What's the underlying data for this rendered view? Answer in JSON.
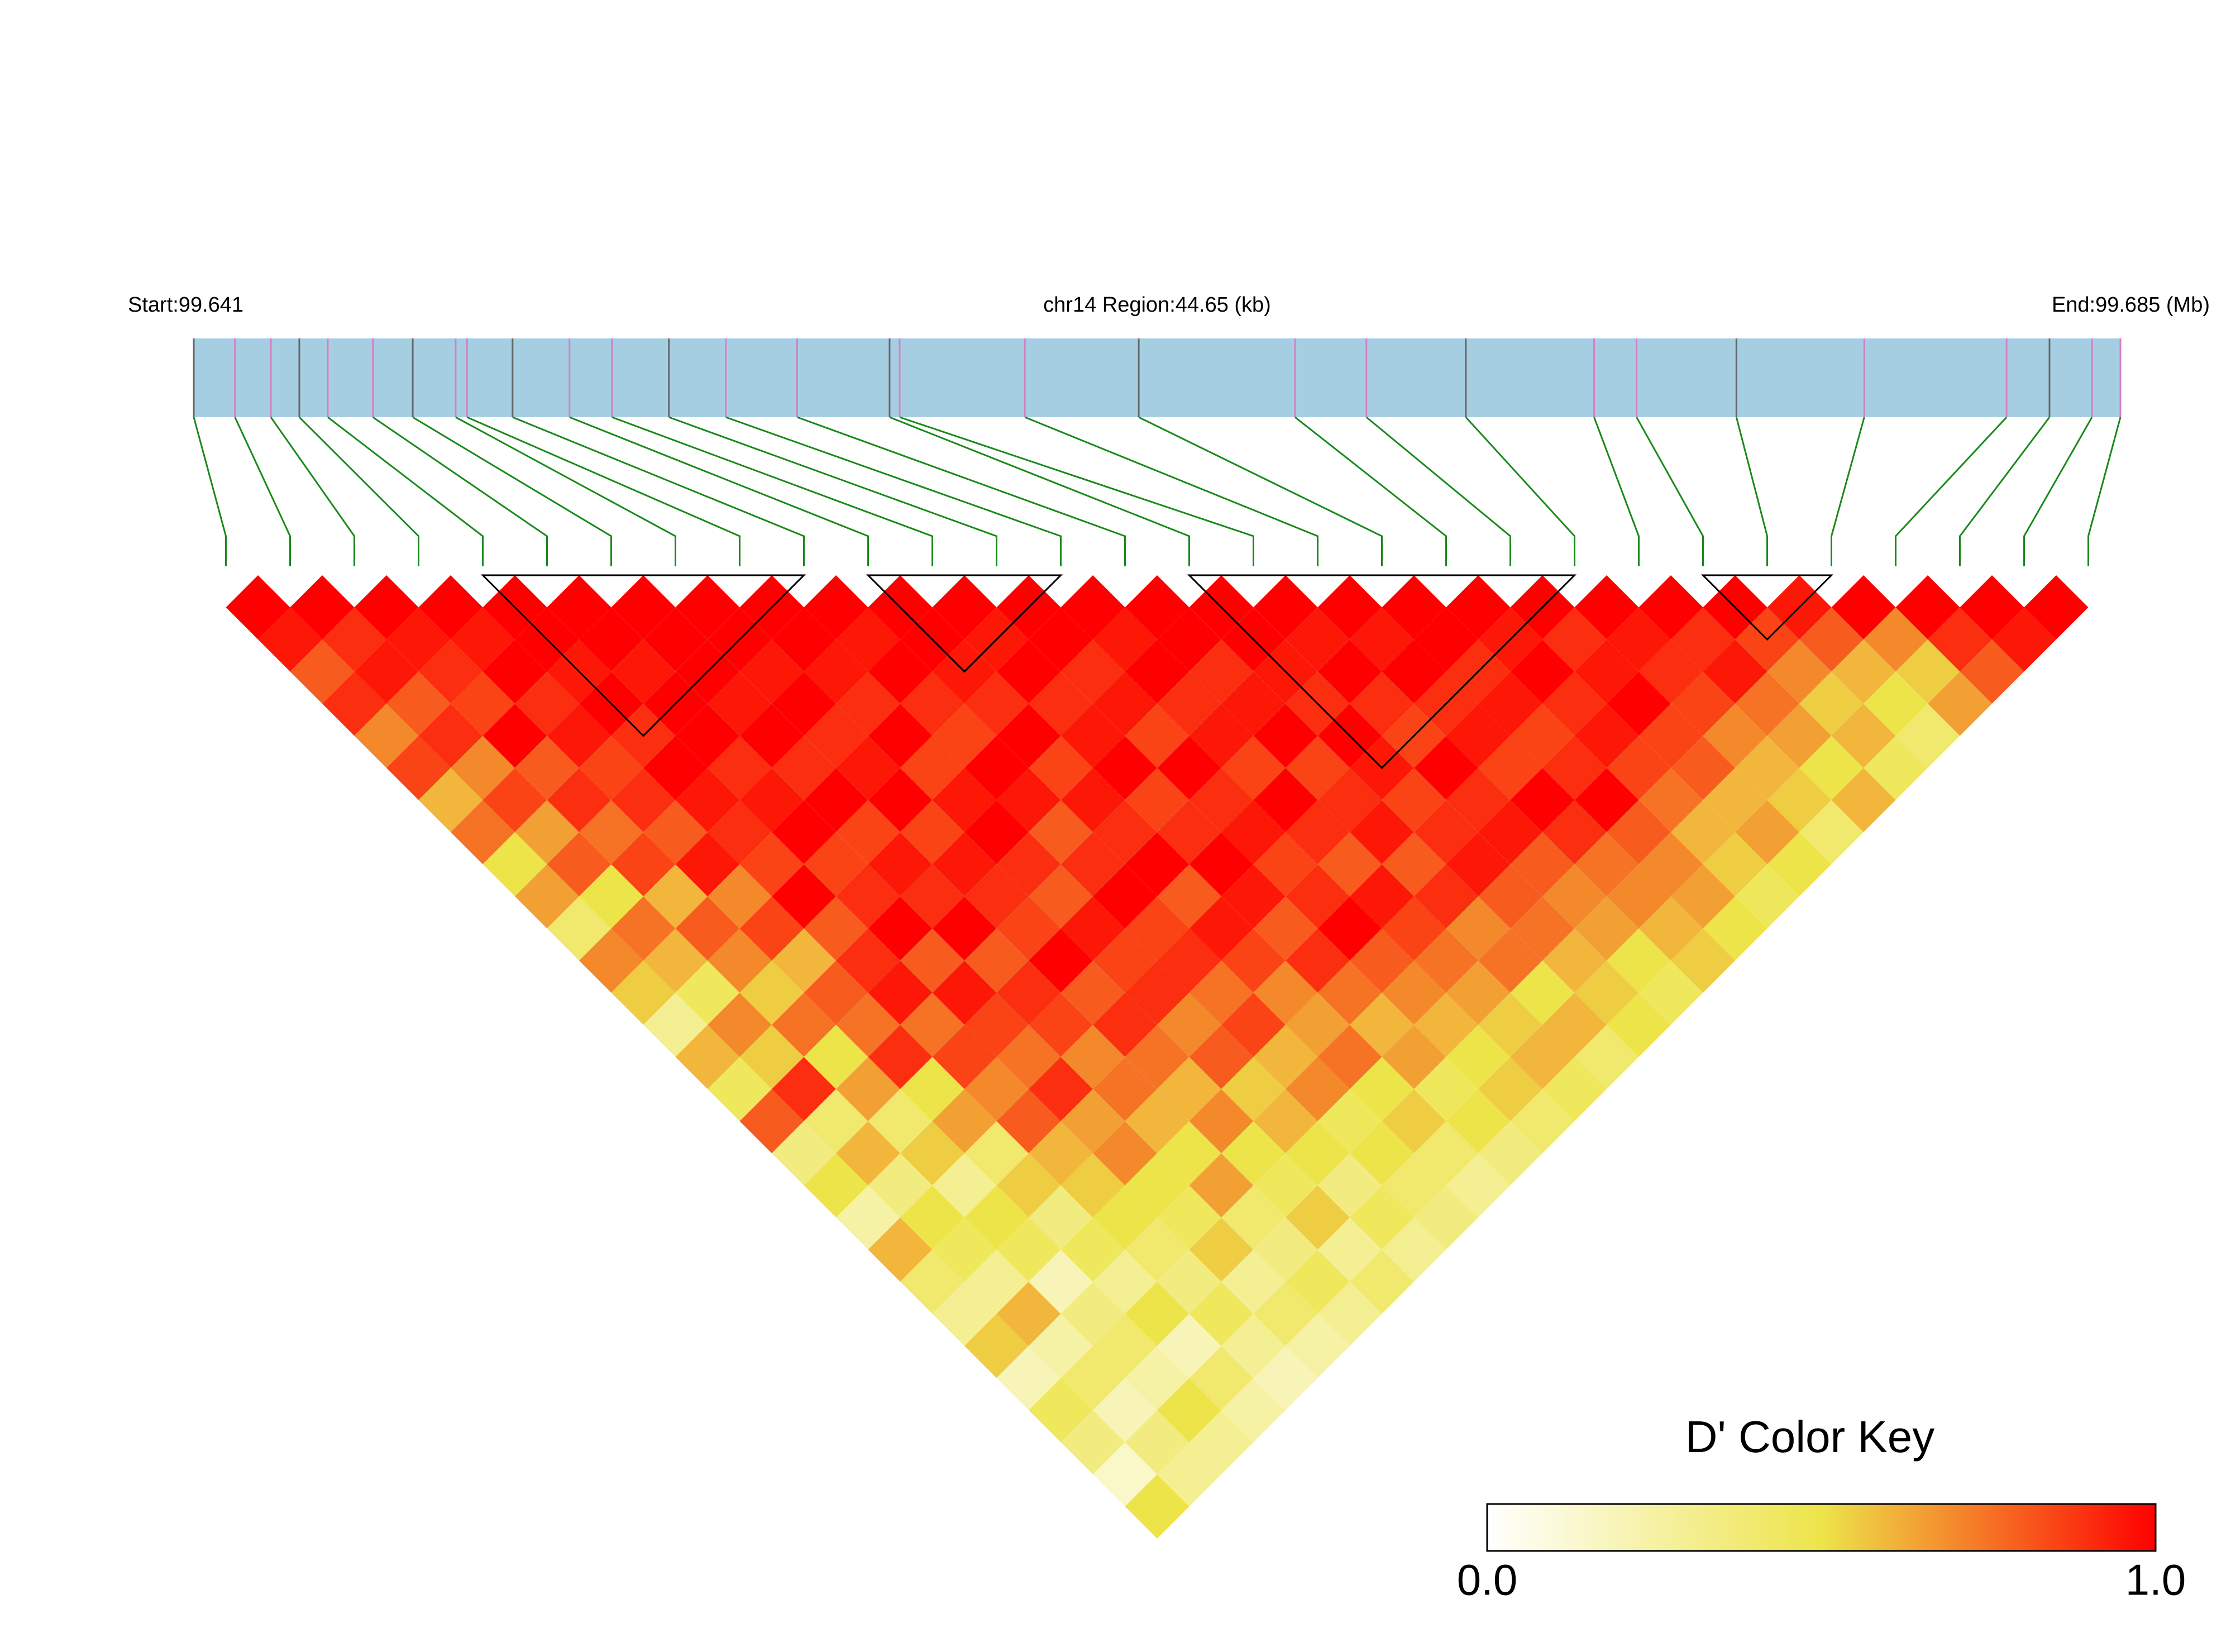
{
  "chart_data": {
    "type": "ldheatmap",
    "title": "chr14 Region:44.65 (kb)",
    "xlim": [
      99.641,
      99.685
    ],
    "xticks": [
      {
        "value": 99.641,
        "label": "Start:99.641"
      },
      {
        "value": 99.685,
        "label": "End:99.685 (Mb)"
      }
    ],
    "snp_positions": [
      99.641,
      99.64194,
      99.64276,
      99.64341,
      99.64406,
      99.64509,
      99.646,
      99.64698,
      99.64724,
      99.64828,
      99.64958,
      99.65055,
      99.65185,
      99.65315,
      99.65478,
      99.65689,
      99.65712,
      99.65998,
      99.66258,
      99.66615,
      99.66778,
      99.67005,
      99.67298,
      99.67395,
      99.67623,
      99.67915,
      99.6824,
      99.68338,
      99.68435,
      99.685
    ],
    "matrix": [
      [
        1,
        0.95,
        0.8,
        0.9,
        0.7,
        0.85,
        0.6,
        0.75,
        0.5,
        0.65,
        0.4,
        0.7,
        0.55,
        0.3,
        0.6,
        0.45,
        0.8,
        0.35,
        0.5,
        0.25,
        0.6,
        0.4,
        0.3,
        0.55,
        0.2,
        0.45,
        0.35,
        0.15,
        0.5
      ],
      [
        1,
        0.9,
        0.95,
        0.8,
        0.9,
        0.7,
        0.85,
        0.65,
        0.8,
        0.5,
        0.75,
        0.6,
        0.45,
        0.7,
        0.55,
        0.9,
        0.4,
        0.6,
        0.35,
        0.5,
        0.45,
        0.3,
        0.6,
        0.25,
        0.4,
        0.2,
        0.35,
        0.3
      ],
      [
        1,
        0.95,
        0.9,
        0.85,
        1,
        0.8,
        0.9,
        0.75,
        0.85,
        0.6,
        0.8,
        0.7,
        0.55,
        0.75,
        0.5,
        0.65,
        0.4,
        0.55,
        0.3,
        0.5,
        0.45,
        0.2,
        0.35,
        0.4,
        0.25,
        0.5,
        0.3
      ],
      [
        1,
        0.95,
        1,
        0.9,
        0.95,
        0.85,
        0.9,
        0.8,
        0.95,
        0.7,
        0.85,
        0.6,
        0.8,
        0.75,
        0.9,
        0.5,
        0.65,
        0.4,
        0.55,
        0.35,
        0.45,
        0.3,
        0.5,
        0.2,
        0.4,
        0.25
      ],
      [
        1,
        1,
        0.95,
        1,
        0.9,
        1,
        0.95,
        0.9,
        0.85,
        1,
        0.8,
        0.9,
        0.95,
        0.75,
        0.85,
        0.7,
        0.8,
        0.6,
        0.55,
        0.5,
        0.4,
        0.35,
        0.45,
        0.3,
        0.2
      ],
      [
        1,
        1,
        0.95,
        1,
        1,
        0.9,
        0.95,
        1,
        0.85,
        0.9,
        1,
        0.8,
        0.95,
        0.85,
        0.75,
        0.9,
        0.65,
        0.7,
        0.5,
        0.45,
        0.55,
        0.3,
        0.4,
        0.25
      ],
      [
        1,
        1,
        1,
        0.95,
        1,
        0.9,
        1,
        0.85,
        0.95,
        0.9,
        1,
        0.8,
        0.9,
        0.85,
        0.7,
        0.75,
        0.6,
        0.5,
        0.65,
        0.4,
        0.35,
        0.45,
        0.3
      ],
      [
        1,
        1,
        0.95,
        1,
        0.9,
        0.95,
        1,
        0.85,
        0.95,
        0.9,
        0.85,
        1,
        0.8,
        0.9,
        0.75,
        0.6,
        0.7,
        0.5,
        0.45,
        0.55,
        0.3,
        0.4
      ],
      [
        1,
        1,
        0.95,
        0.9,
        1,
        0.85,
        0.95,
        1,
        0.9,
        0.8,
        0.95,
        0.85,
        0.9,
        0.7,
        0.8,
        0.55,
        0.6,
        0.5,
        0.35,
        0.45,
        0.3
      ],
      [
        1,
        0.95,
        1,
        0.9,
        0.85,
        1,
        0.95,
        0.8,
        0.9,
        1,
        0.85,
        0.9,
        0.75,
        0.85,
        0.6,
        0.7,
        0.45,
        0.5,
        0.4,
        0.35
      ],
      [
        1,
        1,
        0.95,
        0.9,
        1,
        0.85,
        0.95,
        0.9,
        1,
        0.8,
        0.95,
        0.85,
        0.7,
        0.65,
        0.75,
        0.5,
        0.55,
        0.4,
        0.3
      ],
      [
        1,
        0.95,
        1,
        0.9,
        0.95,
        1,
        0.85,
        0.9,
        1,
        0.95,
        0.8,
        0.9,
        0.75,
        0.6,
        0.65,
        0.45,
        0.5,
        0.35
      ],
      [
        1,
        1,
        0.9,
        0.95,
        0.85,
        1,
        0.9,
        0.95,
        0.85,
        0.9,
        1,
        0.8,
        0.7,
        0.6,
        0.5,
        0.55,
        0.4
      ],
      [
        1,
        0.95,
        1,
        0.9,
        0.95,
        0.85,
        1,
        0.9,
        0.8,
        0.95,
        0.85,
        0.75,
        0.65,
        0.55,
        0.6,
        0.45
      ],
      [
        1,
        1,
        0.9,
        0.95,
        1,
        0.85,
        0.9,
        0.95,
        0.8,
        0.9,
        0.7,
        0.75,
        0.5,
        0.6,
        0.4
      ],
      [
        1,
        1,
        0.95,
        0.9,
        1,
        0.95,
        0.85,
        0.9,
        0.95,
        0.8,
        0.75,
        0.6,
        0.55,
        0.5
      ],
      [
        1,
        0.95,
        1,
        0.9,
        0.85,
        1,
        0.9,
        0.95,
        0.8,
        0.7,
        0.65,
        0.5,
        0.45
      ],
      [
        1,
        0.95,
        1,
        0.9,
        0.95,
        0.85,
        1,
        0.9,
        0.75,
        0.7,
        0.6,
        0.55
      ],
      [
        1,
        1,
        0.9,
        0.95,
        0.85,
        0.9,
        1,
        0.8,
        0.7,
        0.65,
        0.5
      ],
      [
        1,
        0.95,
        1,
        0.9,
        0.95,
        0.85,
        0.75,
        0.6,
        0.55,
        0.45
      ],
      [
        1,
        0.9,
        0.95,
        1,
        0.85,
        0.8,
        0.6,
        0.65,
        0.5
      ],
      [
        1,
        0.95,
        0.9,
        0.85,
        0.7,
        0.6,
        0.55,
        0.4
      ],
      [
        1,
        0.9,
        0.95,
        0.75,
        0.65,
        0.5,
        0.6
      ],
      [
        1,
        0.85,
        0.7,
        0.55,
        0.6,
        0.45
      ],
      [
        0.95,
        0.8,
        0.6,
        0.5,
        0.4
      ],
      [
        1,
        0.7,
        0.55,
        0.65
      ],
      [
        1,
        0.9,
        0.8
      ],
      [
        1,
        0.95
      ],
      [
        1
      ]
    ],
    "blocks": [
      [
        4,
        9
      ],
      [
        10,
        13
      ],
      [
        15,
        21
      ],
      [
        23,
        25
      ]
    ],
    "colors": [
      "#ffffff",
      "#ede44a",
      "#ff0000"
    ],
    "legend_title": "D' Color Key",
    "clim": [
      0,
      1
    ],
    "cticks": [
      {
        "value": 0,
        "label": "0.0"
      },
      {
        "value": 1,
        "label": "1.0"
      }
    ]
  }
}
